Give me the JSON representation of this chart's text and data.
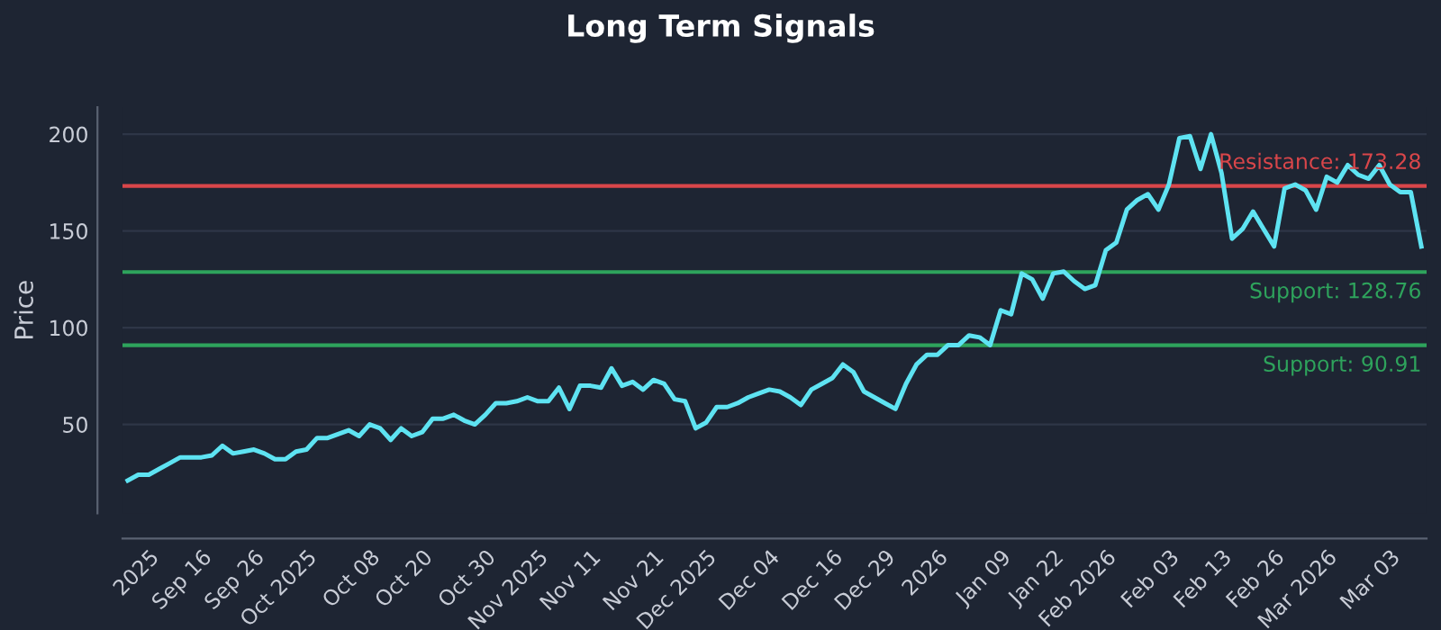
{
  "chart_data": {
    "type": "line",
    "title": "Long Term Signals",
    "ylabel": "Price",
    "categories": [
      null,
      null,
      "2025",
      null,
      null,
      null,
      null,
      "Sep 16",
      null,
      null,
      null,
      null,
      "Sep 26",
      null,
      null,
      null,
      null,
      "Oct 2025",
      null,
      null,
      null,
      null,
      null,
      "Oct 08",
      null,
      null,
      null,
      null,
      "Oct 20",
      null,
      null,
      null,
      null,
      null,
      "Oct 30",
      null,
      null,
      null,
      null,
      "Nov 2025",
      null,
      null,
      null,
      null,
      "Nov 11",
      null,
      null,
      null,
      null,
      null,
      "Nov 21",
      null,
      null,
      null,
      null,
      "Dec 2025",
      null,
      null,
      null,
      null,
      null,
      "Dec 04",
      null,
      null,
      null,
      null,
      null,
      "Dec 16",
      null,
      null,
      null,
      null,
      "Dec 29",
      null,
      null,
      null,
      null,
      "2026",
      null,
      null,
      null,
      null,
      null,
      "Jan 09",
      null,
      null,
      null,
      null,
      "Jan 22",
      null,
      null,
      null,
      null,
      "Feb 2026",
      null,
      null,
      null,
      null,
      null,
      "Feb 03",
      null,
      null,
      null,
      null,
      "Feb 13",
      null,
      null,
      null,
      null,
      "Feb 26",
      null,
      null,
      null,
      null,
      "Mar 2026",
      null,
      null,
      null,
      null,
      null,
      "Mar 03",
      null,
      null,
      null
    ],
    "series": [
      {
        "color": "#5ee3f2",
        "values": [
          21,
          24,
          24,
          27,
          30,
          33,
          33,
          33,
          34,
          39,
          35,
          36,
          37,
          35,
          32,
          32,
          36,
          37,
          43,
          43,
          45,
          47,
          44,
          50,
          48,
          42,
          48,
          44,
          46,
          53,
          53,
          55,
          52,
          50,
          55,
          61,
          61,
          62,
          64,
          62,
          62,
          69,
          58,
          70,
          70,
          69,
          79,
          70,
          72,
          68,
          73,
          71,
          63,
          62,
          48,
          51,
          59,
          59,
          61,
          64,
          66,
          68,
          67,
          64,
          60,
          68,
          71,
          74,
          81,
          77,
          67,
          64,
          61,
          58,
          71,
          81,
          86,
          86,
          91,
          91,
          96,
          95,
          91,
          109,
          107,
          128,
          125,
          115,
          128,
          129,
          124,
          120,
          122,
          140,
          144,
          161,
          166,
          169,
          161,
          174,
          198,
          199,
          182,
          200,
          180,
          146,
          151,
          160,
          151,
          142,
          172,
          174,
          171,
          161,
          178,
          175,
          184,
          179,
          177,
          184,
          174,
          170,
          170,
          142
        ]
      }
    ],
    "ylim": [
      4,
      214
    ],
    "yticks": [
      50,
      100,
      150,
      200
    ],
    "grid": "y",
    "marker": "none",
    "line_style": "solid",
    "ref_lines": [
      {
        "axis": "y",
        "value": 173.28,
        "label": "Resistance: 173.28",
        "color": "#d9464a"
      },
      {
        "axis": "y",
        "value": 128.76,
        "label": "Support: 128.76",
        "color": "#2ea35c"
      },
      {
        "axis": "y",
        "value": 90.91,
        "label": "Support: 90.91",
        "color": "#2ea35c"
      }
    ]
  }
}
